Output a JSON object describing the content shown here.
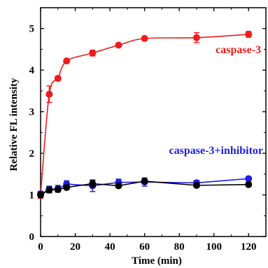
{
  "chart_data": {
    "type": "line",
    "title": "",
    "xlabel": "Time (min)",
    "ylabel": "Relative FL intensity",
    "xlim": [
      0,
      130
    ],
    "ylim": [
      0,
      5.5
    ],
    "xticks": [
      0,
      20,
      40,
      60,
      80,
      100,
      120
    ],
    "yticks": [
      0,
      1,
      2,
      3,
      4,
      5
    ],
    "grid": false,
    "legend": "inline labels",
    "series": [
      {
        "name": "caspase-3",
        "color": "#ee1c1c",
        "fit_curve": true,
        "points": [
          {
            "x": 0,
            "y": 1.0,
            "err": 0.08
          },
          {
            "x": 5,
            "y": 3.42,
            "err": 0.2
          },
          {
            "x": 10,
            "y": 3.8,
            "err": 0.05
          },
          {
            "x": 15,
            "y": 4.22,
            "err": 0.05
          },
          {
            "x": 30,
            "y": 4.41,
            "err": 0.07
          },
          {
            "x": 45,
            "y": 4.6,
            "err": 0.04
          },
          {
            "x": 60,
            "y": 4.76,
            "err": 0.04
          },
          {
            "x": 90,
            "y": 4.78,
            "err": 0.12
          },
          {
            "x": 120,
            "y": 4.86,
            "err": 0.07
          }
        ]
      },
      {
        "name": "caspase-3+inhibitor",
        "color": "#1e1ee6",
        "fit_curve": false,
        "points": [
          {
            "x": 0,
            "y": 1.02,
            "err": 0.07
          },
          {
            "x": 5,
            "y": 1.13,
            "err": 0.08
          },
          {
            "x": 10,
            "y": 1.15,
            "err": 0.08
          },
          {
            "x": 15,
            "y": 1.26,
            "err": 0.08
          },
          {
            "x": 30,
            "y": 1.22,
            "err": 0.14
          },
          {
            "x": 45,
            "y": 1.3,
            "err": 0.08
          },
          {
            "x": 60,
            "y": 1.31,
            "err": 0.1
          },
          {
            "x": 90,
            "y": 1.29,
            "err": 0.06
          },
          {
            "x": 120,
            "y": 1.39,
            "err": 0.05
          }
        ]
      },
      {
        "name": "",
        "color": "#000000",
        "fit_curve": false,
        "points": [
          {
            "x": 0,
            "y": 1.0,
            "err": 0.06
          },
          {
            "x": 5,
            "y": 1.12,
            "err": 0.07
          },
          {
            "x": 10,
            "y": 1.13,
            "err": 0.06
          },
          {
            "x": 15,
            "y": 1.18,
            "err": 0.05
          },
          {
            "x": 30,
            "y": 1.27,
            "err": 0.08
          },
          {
            "x": 45,
            "y": 1.22,
            "err": 0.05
          },
          {
            "x": 60,
            "y": 1.33,
            "err": 0.05
          },
          {
            "x": 90,
            "y": 1.23,
            "err": 0.05
          },
          {
            "x": 120,
            "y": 1.25,
            "err": 0.05
          }
        ]
      }
    ]
  }
}
